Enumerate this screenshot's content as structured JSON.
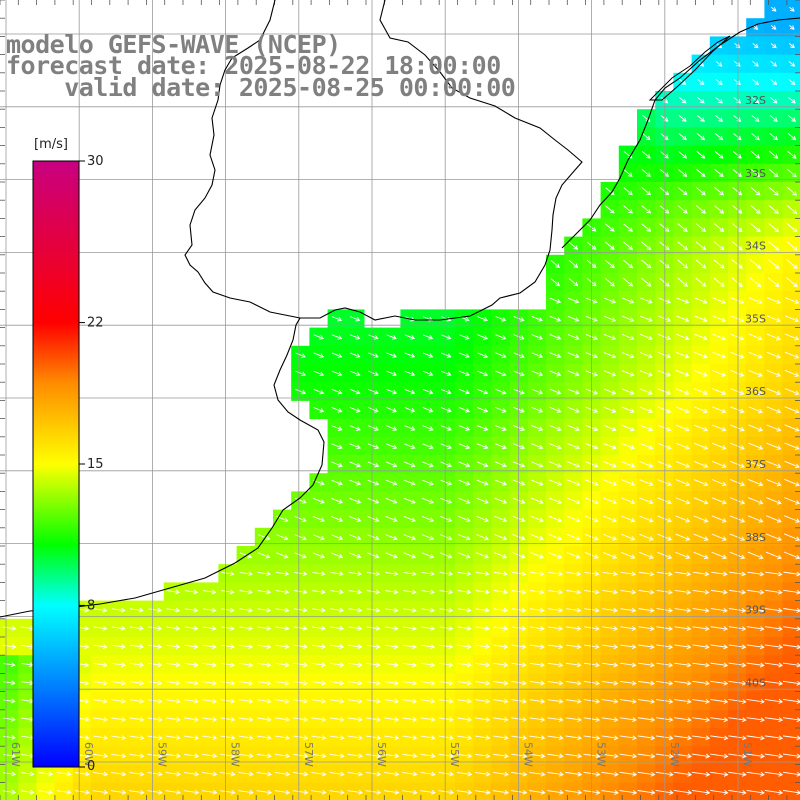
{
  "title": {
    "line1": "modelo GEFS-WAVE (NCEP)",
    "line2": "forecast date: 2025-08-22 18:00:00",
    "line3": "    valid date: 2025-08-25 00:00:00"
  },
  "colorbar": {
    "unit": "[m/s]",
    "ticks": [
      {
        "value": 30,
        "label": "30"
      },
      {
        "value": 22,
        "label": "22"
      },
      {
        "value": 15,
        "label": "15"
      },
      {
        "value": 8,
        "label": "8"
      },
      {
        "value": 0,
        "label": "0"
      }
    ],
    "min": 0,
    "max": 30,
    "colors": [
      "#0000ff",
      "#00ffff",
      "#00ff00",
      "#ffff00",
      "#ff8000",
      "#ff0000",
      "#c00080"
    ]
  },
  "lat_labels": [
    "32S",
    "33S",
    "34S",
    "35S",
    "36S",
    "37S",
    "38S",
    "39S",
    "40S"
  ],
  "lon_labels": [
    "61W",
    "60W",
    "59W",
    "58W",
    "57W",
    "56W",
    "55W",
    "54W",
    "53W",
    "52W",
    "51W"
  ],
  "map": {
    "land_color": "#ffffff",
    "grid_color": "#999999",
    "coast_color": "#000000",
    "arrow_color": "#ffffff"
  }
}
